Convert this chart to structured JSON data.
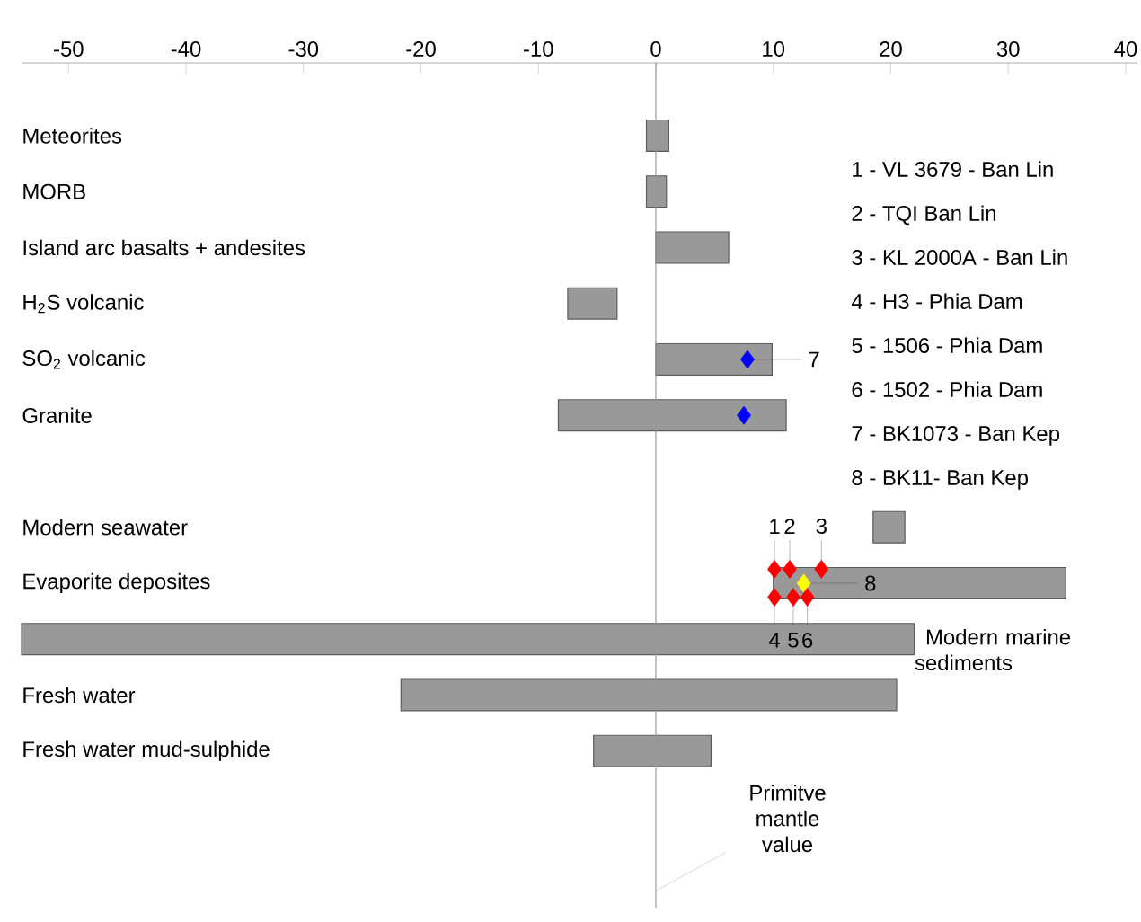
{
  "chart_data": {
    "type": "bar",
    "orientation": "horizontal",
    "color": "#999999",
    "categories": [
      "Meteorites",
      "MORB",
      "Island arc basalts + andesites",
      "H$_{2}$S volcanic",
      "SO$_{2}$ volcanic",
      "Granite",
      null,
      "Modern seawater",
      "Evaporite deposites",
      "Modern marine sediments",
      "Fresh water",
      "Fresh water mud-sulphide"
    ],
    "base": [
      -0.8,
      -0.8,
      0,
      -7.5,
      0,
      -8.3,
      null,
      18.5,
      10,
      -54,
      -21.7,
      -5.3
    ],
    "values": [
      1.9,
      1.7,
      6.2,
      4.2,
      9.9,
      19.4,
      null,
      2.7,
      24.9,
      76,
      42.2,
      10.0
    ],
    "series": [
      {
        "type": "scatter",
        "color": "#0000ff",
        "x": [
          "SO$_{2}$ volcanic",
          "Granite"
        ],
        "values": [
          7.8,
          7.5
        ]
      },
      {
        "type": "scatter",
        "color": "#ff0000",
        "x": [
          "Evaporite deposites",
          "Evaporite deposites",
          "Evaporite deposites"
        ],
        "values": [
          10.1,
          11.4,
          14.1
        ]
      },
      {
        "type": "scatter",
        "color": "#ffff00",
        "x": [
          "Evaporite deposites"
        ],
        "values": [
          12.6
        ]
      },
      {
        "type": "scatter",
        "color": "#ff0000",
        "x": [
          "Evaporite deposites",
          "Evaporite deposites",
          "Evaporite deposites"
        ],
        "values": [
          10.1,
          11.7,
          12.9
        ]
      }
    ],
    "marker": "diamond",
    "xlim": [
      -54,
      41
    ],
    "xticks": [
      -50,
      -40,
      -30,
      -20,
      -10,
      0,
      10,
      20,
      30,
      40
    ],
    "tick_labels": "x",
    "ref_lines": [
      {
        "axis": "x",
        "value": 0,
        "label": "Primitve mantle value"
      }
    ],
    "annotations": [
      "1 - VL 3679 - Ban Lin",
      "2 - TQI Ban Lin",
      "3 - KL 2000A - Ban Lin",
      "4 - H3 - Phia Dam",
      "5 - 1506 - Phia Dam",
      "6 - 1502 - Phia Dam",
      "7 - BK1073 - Ban Kep",
      "8 - BK11- Ban Kep",
      {
        "text": "1",
        "x": 10.1,
        "y": "Evaporite deposites"
      },
      {
        "text": "2",
        "x": 11.4,
        "y": "Evaporite deposites"
      },
      {
        "text": "3",
        "x": 14.1,
        "y": "Evaporite deposites"
      },
      {
        "text": "4",
        "x": 10.1,
        "y": "Evaporite deposites"
      },
      {
        "text": "5",
        "x": 11.7,
        "y": "Evaporite deposites"
      },
      {
        "text": "6",
        "x": 12.9,
        "y": "Evaporite deposites"
      },
      {
        "text": "8",
        "x": 12.6,
        "y": "Evaporite deposites"
      },
      {
        "text": "7",
        "x": 7.8,
        "y": "SO$_{2}$ volcanic"
      }
    ]
  }
}
